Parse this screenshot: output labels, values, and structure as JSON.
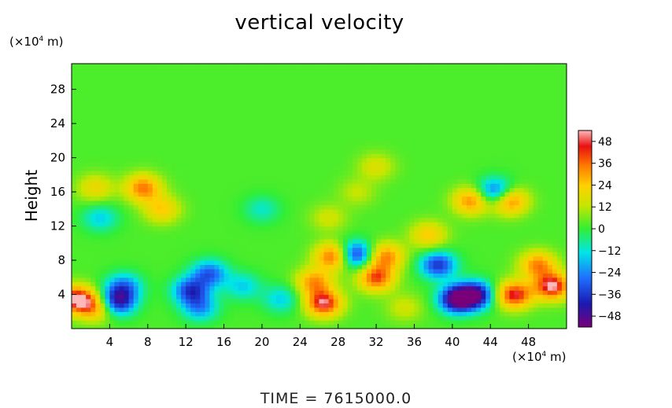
{
  "chart_data": {
    "type": "heatmap",
    "title": "vertical velocity",
    "ylabel": "Height",
    "x_unit": "(×10⁴ m)",
    "y_unit": "(×10⁴ m)",
    "xlim": [
      0,
      52
    ],
    "ylim": [
      0,
      31
    ],
    "x_ticks": [
      "4",
      "8",
      "12",
      "16",
      "20",
      "24",
      "28",
      "32",
      "36",
      "40",
      "44",
      "48"
    ],
    "y_ticks": [
      "4",
      "8",
      "12",
      "16",
      "20",
      "24",
      "28"
    ],
    "colorbar": {
      "range": [
        -48,
        48
      ],
      "tick_labels": [
        "48",
        "36",
        "24",
        "12",
        "0",
        "−12",
        "−24",
        "−36",
        "−48"
      ]
    },
    "background_value": 2,
    "features": [
      {
        "x": 0.5,
        "y": 3.5,
        "value": 48
      },
      {
        "x": 2.5,
        "y": 2.5,
        "value": 30
      },
      {
        "x": 4.8,
        "y": 3.2,
        "value": -38
      },
      {
        "x": 5.5,
        "y": 5.0,
        "value": -22
      },
      {
        "x": 7.5,
        "y": 16.5,
        "value": 36
      },
      {
        "x": 9.5,
        "y": 14.0,
        "value": 24
      },
      {
        "x": 12.5,
        "y": 4.5,
        "value": -30
      },
      {
        "x": 14.5,
        "y": 6.5,
        "value": -26
      },
      {
        "x": 13.5,
        "y": 2.5,
        "value": -20
      },
      {
        "x": 18.0,
        "y": 5.0,
        "value": -14
      },
      {
        "x": 22.0,
        "y": 3.5,
        "value": -14
      },
      {
        "x": 25.5,
        "y": 5.5,
        "value": 32
      },
      {
        "x": 26.5,
        "y": 3.0,
        "value": 46
      },
      {
        "x": 27.5,
        "y": 8.5,
        "value": 40
      },
      {
        "x": 29.8,
        "y": 8.7,
        "value": -36
      },
      {
        "x": 32.0,
        "y": 6.0,
        "value": 40
      },
      {
        "x": 33.0,
        "y": 8.5,
        "value": 34
      },
      {
        "x": 35.0,
        "y": 2.5,
        "value": 14
      },
      {
        "x": 37.5,
        "y": 11.0,
        "value": 24
      },
      {
        "x": 38.5,
        "y": 7.5,
        "value": -32
      },
      {
        "x": 40.5,
        "y": 3.5,
        "value": -48
      },
      {
        "x": 42.5,
        "y": 4.0,
        "value": -40
      },
      {
        "x": 46.5,
        "y": 4.0,
        "value": 46
      },
      {
        "x": 50.5,
        "y": 5.0,
        "value": 48
      },
      {
        "x": 49.0,
        "y": 7.5,
        "value": 34
      },
      {
        "x": 42.0,
        "y": 15.0,
        "value": 34
      },
      {
        "x": 44.5,
        "y": 16.0,
        "value": -32
      },
      {
        "x": 46.0,
        "y": 15.0,
        "value": 38
      },
      {
        "x": 32.0,
        "y": 19.0,
        "value": 16
      },
      {
        "x": 30.0,
        "y": 16.0,
        "value": 12
      },
      {
        "x": 2.5,
        "y": 16.5,
        "value": 20
      },
      {
        "x": 3.0,
        "y": 13.0,
        "value": -14
      },
      {
        "x": 20.0,
        "y": 14.0,
        "value": -10
      },
      {
        "x": 27.0,
        "y": 13.0,
        "value": 14
      }
    ]
  },
  "footer": {
    "time_label": "TIME = 7615000.0"
  }
}
